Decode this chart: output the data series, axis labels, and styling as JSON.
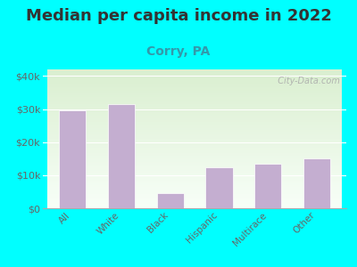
{
  "title": "Median per capita income in 2022",
  "subtitle": "Corry, PA",
  "categories": [
    "All",
    "White",
    "Black",
    "Hispanic",
    "Multirace",
    "Other"
  ],
  "values": [
    29500,
    31500,
    4500,
    12500,
    13500,
    15000
  ],
  "bar_color": "#c4aed0",
  "background_outer": "#00ffff",
  "background_inner_top": "#daefd0",
  "background_inner_bottom": "#f8fff8",
  "yticks": [
    0,
    10000,
    20000,
    30000,
    40000
  ],
  "ytick_labels": [
    "$0",
    "$10k",
    "$20k",
    "$30k",
    "$40k"
  ],
  "ylim": [
    0,
    42000
  ],
  "title_fontsize": 13,
  "subtitle_fontsize": 10,
  "subtitle_color": "#3399aa",
  "tick_label_color": "#666666",
  "watermark": "  City-Data.com",
  "watermark_color": "#aaaaaa"
}
